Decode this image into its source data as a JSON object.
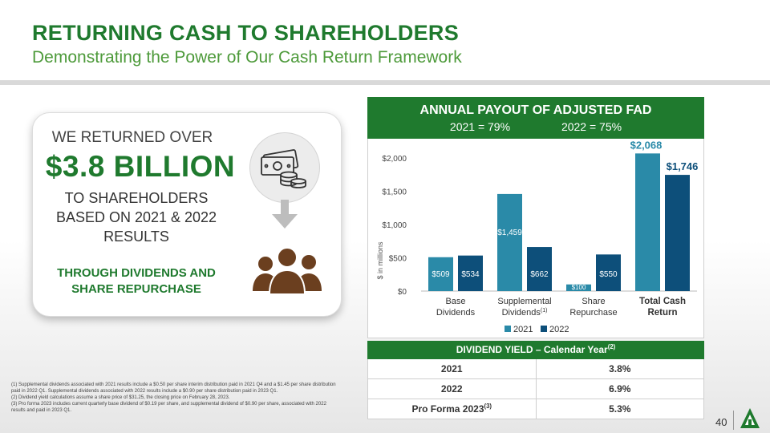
{
  "header": {
    "title": "RETURNING CASH TO SHAREHOLDERS",
    "subtitle": "Demonstrating the Power of Our Cash Return Framework"
  },
  "card": {
    "line1": "WE RETURNED OVER",
    "amount": "$3.8 BILLION",
    "line2": "TO SHAREHOLDERS",
    "line3": "BASED ON 2021 & 2022",
    "line4": "RESULTS",
    "line5": "THROUGH DIVIDENDS AND",
    "line6": "SHARE REPURCHASE"
  },
  "payout": {
    "title": "ANNUAL PAYOUT OF ADJUSTED FAD",
    "y2021": "2021 = 79%",
    "y2022": "2022 = 75%"
  },
  "chart_data": {
    "type": "bar",
    "ylabel": "$ in millions",
    "ylim": [
      0,
      2000
    ],
    "yticks": [
      "$0",
      "$500",
      "$1,000",
      "$1,500",
      "$2,000"
    ],
    "ytick_values": [
      0,
      500,
      1000,
      1500,
      2000
    ],
    "categories": [
      {
        "line1": "Base",
        "line2": "Dividends",
        "sup": "",
        "bold": false
      },
      {
        "line1": "Supplemental",
        "line2": "Dividends",
        "sup": "(1)",
        "bold": false
      },
      {
        "line1": "Share",
        "line2": "Repurchase",
        "sup": "",
        "bold": false
      },
      {
        "line1": "Total Cash",
        "line2": "Return",
        "sup": "",
        "bold": true
      }
    ],
    "series": [
      {
        "name": "2021",
        "color": "#2a8aa8",
        "values": [
          509,
          1459,
          100,
          2068
        ],
        "labels": [
          "$509",
          "$1,459",
          "$100",
          "$2,068"
        ]
      },
      {
        "name": "2022",
        "color": "#0d4f7a",
        "values": [
          534,
          662,
          550,
          1746
        ],
        "labels": [
          "$534",
          "$662",
          "$550",
          "$1,746"
        ]
      }
    ],
    "legend": [
      "2021",
      "2022"
    ]
  },
  "yield_table": {
    "title": "DIVIDEND YIELD – Calendar Year",
    "title_sup": "(2)",
    "rows": [
      {
        "label": "2021",
        "value": "3.8%"
      },
      {
        "label": "2022",
        "value": "6.9%"
      },
      {
        "label": "Pro Forma 2023",
        "sup": "(3)",
        "value": "5.3%"
      }
    ]
  },
  "footnotes": [
    "(1) Supplemental dividends associated with 2021 results include a $0.50 per share interim distribution paid in 2021 Q4 and a $1.45 per share distribution paid in 2022 Q1. Supplemental dividends associated with 2022 results include a $0.90 per share distribution paid in 2023 Q1.",
    "(2) Dividend yield calculations assume a share price of $31.25, the closing price on February 28, 2023.",
    "(3) Pro forma 2023 includes current quarterly base dividend of $0.19 per share, and supplemental dividend of $0.90 per share, associated with 2022 results and paid in 2023 Q1."
  ],
  "page_number": "40"
}
